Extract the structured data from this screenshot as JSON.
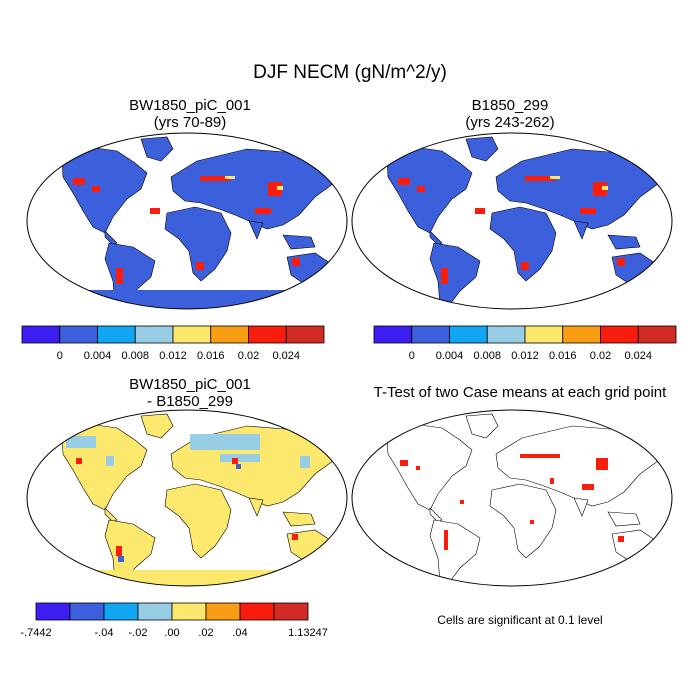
{
  "title": "DJF NECM (gN/m^2/y)",
  "chart_data": [
    {
      "type": "heatmap",
      "title": "BW1850_piC_001",
      "subtitle": "(yrs 70-89)",
      "colorbar": {
        "colors": [
          "#3d1ef0",
          "#3c5fdc",
          "#12a5f2",
          "#98cde6",
          "#fde86e",
          "#f89d14",
          "#f81d0d",
          "#d22b25"
        ],
        "tick_labels": [
          "0",
          "0.004",
          "0.008",
          "0.012",
          "0.016",
          "0.02",
          "0.024"
        ]
      }
    },
    {
      "type": "heatmap",
      "title": "B1850_299",
      "subtitle": "(yrs 243-262)",
      "colorbar": {
        "colors": [
          "#3d1ef0",
          "#3c5fdc",
          "#12a5f2",
          "#98cde6",
          "#fde86e",
          "#f89d14",
          "#f81d0d",
          "#d22b25"
        ],
        "tick_labels": [
          "0",
          "0.004",
          "0.008",
          "0.012",
          "0.016",
          "0.02",
          "0.024"
        ]
      }
    },
    {
      "type": "heatmap",
      "title": "BW1850_piC_001",
      "subtitle": "- B1850_299",
      "colorbar": {
        "colors": [
          "#3d1ef0",
          "#3c5fdc",
          "#12a5f2",
          "#98cde6",
          "#fde86e",
          "#f89d14",
          "#f81d0d",
          "#d22b25"
        ],
        "tick_labels": [
          "-.7442",
          "-.04",
          "-.02",
          ".00",
          ".02",
          ".04",
          "1.13247"
        ]
      }
    },
    {
      "type": "heatmap",
      "title": "T-Test of two Case means at each grid point",
      "note": "Cells are significant at 0.1 level"
    }
  ]
}
